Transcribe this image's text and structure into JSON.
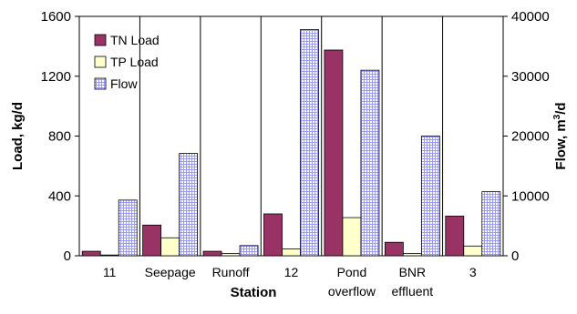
{
  "chart_data": {
    "type": "bar",
    "categories": [
      "11",
      "Seepage",
      "Runoff",
      "12",
      "Pond overflow",
      "BNR effluent",
      "3"
    ],
    "category_label_lines": [
      [
        "11"
      ],
      [
        "Seepage"
      ],
      [
        "Runoff"
      ],
      [
        "12"
      ],
      [
        "Pond",
        "overflow"
      ],
      [
        "BNR",
        "effluent"
      ],
      [
        "3"
      ]
    ],
    "series": [
      {
        "name": "TN Load",
        "axis": "left",
        "color": "#993366",
        "pattern": "solid",
        "values": [
          30,
          205,
          30,
          280,
          1375,
          90,
          265
        ]
      },
      {
        "name": "TP Load",
        "axis": "left",
        "color": "#FFFFCC",
        "pattern": "solid",
        "values": [
          5,
          120,
          15,
          45,
          255,
          15,
          65
        ]
      },
      {
        "name": "Flow",
        "axis": "right",
        "color": "#9999FF",
        "pattern": "grid",
        "values": [
          9300,
          17100,
          1700,
          37800,
          31000,
          20000,
          10700
        ]
      }
    ],
    "xlabel": "Station",
    "ylabel_left": "Load, kg/d",
    "ylabel_right_main": "Flow, m",
    "ylabel_right_sup": "3",
    "ylabel_right_tail": "/d",
    "ylim_left": [
      0,
      1600
    ],
    "yticks_left": [
      "0",
      "400",
      "800",
      "1200",
      "1600"
    ],
    "ylim_right": [
      0,
      40000
    ],
    "yticks_right": [
      "0",
      "10000",
      "20000",
      "30000",
      "40000"
    ],
    "category_separators": true,
    "legend_position": "top-left"
  }
}
